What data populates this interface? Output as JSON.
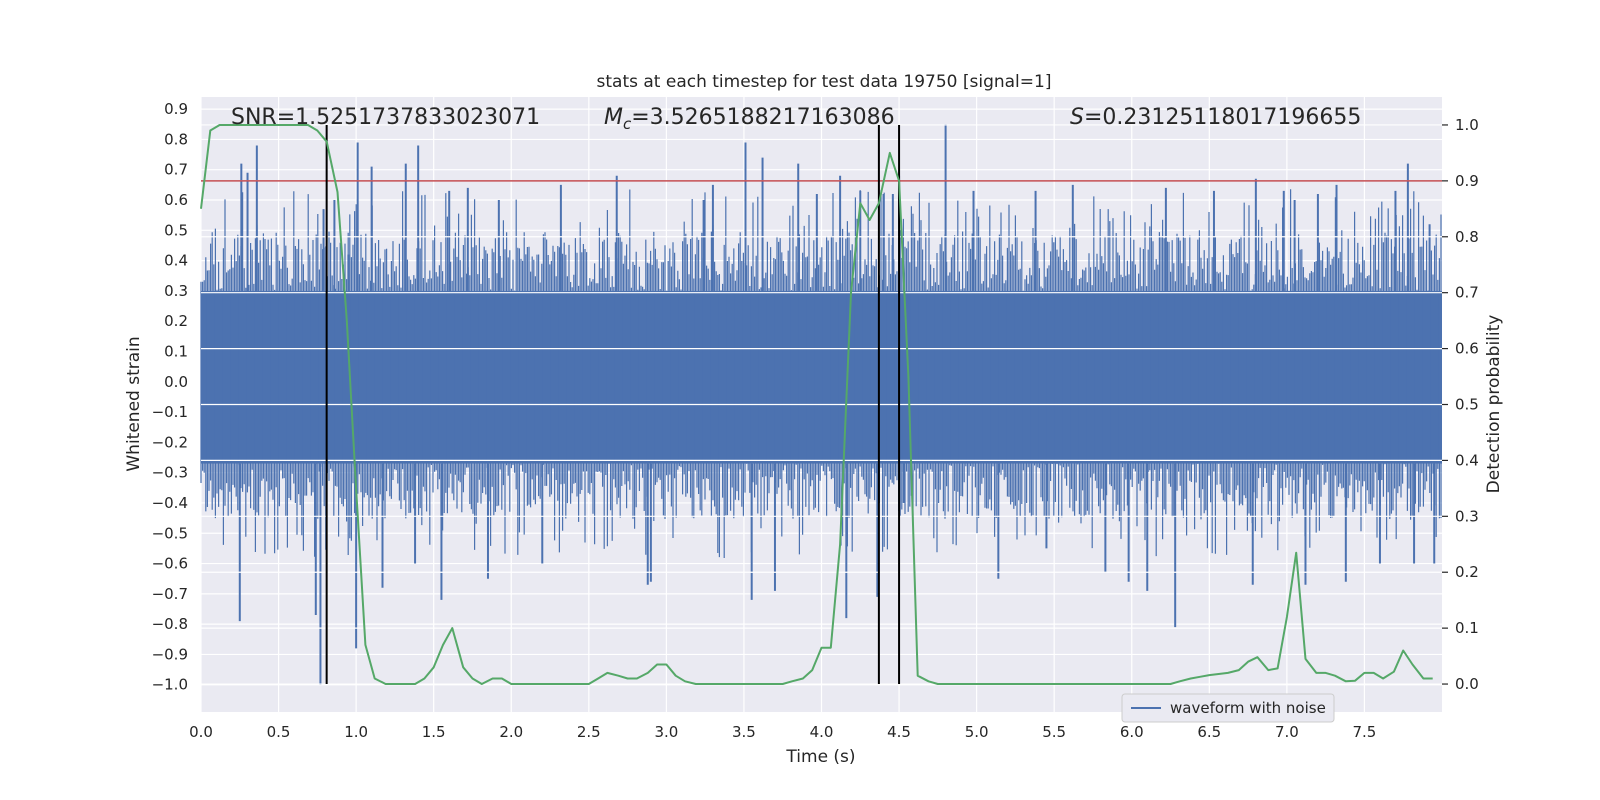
{
  "chart_data": {
    "type": "line",
    "title": "stats at each timestep for test data 19750 [signal=1]",
    "xlabel": "Time (s)",
    "ylabel": "Whitened strain",
    "y2label": "Detection probability",
    "xlim": [
      0.0,
      8.0
    ],
    "ylim": [
      -1.09,
      0.94
    ],
    "y2lim": [
      -0.05,
      1.05
    ],
    "xticks": [
      0.0,
      0.5,
      1.0,
      1.5,
      2.0,
      2.5,
      3.0,
      3.5,
      4.0,
      4.5,
      5.0,
      5.5,
      6.0,
      6.5,
      7.0,
      7.5
    ],
    "xtick_labels": [
      "0.0",
      "0.5",
      "1.0",
      "1.5",
      "2.0",
      "2.5",
      "3.0",
      "3.5",
      "4.0",
      "4.5",
      "5.0",
      "5.5",
      "6.0",
      "6.5",
      "7.0",
      "7.5"
    ],
    "yticks": [
      0.9,
      0.8,
      0.7,
      0.6,
      0.5,
      0.4,
      0.3,
      0.2,
      0.1,
      0.0,
      -0.1,
      -0.2,
      -0.3,
      -0.4,
      -0.5,
      -0.6,
      -0.7,
      -0.8,
      -0.9,
      -1.0
    ],
    "ytick_labels": [
      "0.9",
      "0.8",
      "0.7",
      "0.6",
      "0.5",
      "0.4",
      "0.3",
      "0.2",
      "0.1",
      "0.0",
      "−0.1",
      "−0.2",
      "−0.3",
      "−0.4",
      "−0.5",
      "−0.6",
      "−0.7",
      "−0.8",
      "−0.9",
      "−1.0"
    ],
    "y2ticks": [
      1.0,
      0.9,
      0.8,
      0.7,
      0.6,
      0.5,
      0.4,
      0.3,
      0.2,
      0.1,
      0.0
    ],
    "y2tick_labels": [
      "1.0",
      "0.9",
      "0.8",
      "0.7",
      "0.6",
      "0.5",
      "0.4",
      "0.3",
      "0.2",
      "0.1",
      "0.0"
    ],
    "annotations": {
      "snr": "SNR=1.5251737833023071",
      "mc_symbol": "M",
      "mc_sub": "c",
      "mc_value": "=3.5265188217163086",
      "s_symbol": "S",
      "s_value": "=0.23125118017196655"
    },
    "threshold": {
      "value": 0.9,
      "axis": "right",
      "color": "#c44e52"
    },
    "vertical_lines": [
      0.81,
      4.37,
      4.5
    ],
    "waveform": {
      "name": "waveform with noise",
      "color": "#4c72b0",
      "sample_rate_hz": 2048,
      "core_band": [
        -0.27,
        0.3
      ],
      "spikes": [
        {
          "t": 0.25,
          "y": -0.79
        },
        {
          "t": 0.26,
          "y": 0.72
        },
        {
          "t": 0.3,
          "y": 0.69
        },
        {
          "t": 0.36,
          "y": 0.78
        },
        {
          "t": 0.74,
          "y": -0.77
        },
        {
          "t": 0.77,
          "y": -1.0
        },
        {
          "t": 0.79,
          "y": 0.57
        },
        {
          "t": 0.86,
          "y": 0.6
        },
        {
          "t": 0.95,
          "y": 0.42
        },
        {
          "t": 1.0,
          "y": -0.88
        },
        {
          "t": 1.01,
          "y": 0.79
        },
        {
          "t": 1.1,
          "y": 0.71
        },
        {
          "t": 1.17,
          "y": -0.68
        },
        {
          "t": 1.32,
          "y": 0.72
        },
        {
          "t": 1.38,
          "y": -0.6
        },
        {
          "t": 1.4,
          "y": 0.78
        },
        {
          "t": 1.55,
          "y": -0.72
        },
        {
          "t": 1.6,
          "y": 0.63
        },
        {
          "t": 1.72,
          "y": 0.64
        },
        {
          "t": 1.85,
          "y": -0.65
        },
        {
          "t": 1.92,
          "y": 0.6
        },
        {
          "t": 2.2,
          "y": -0.6
        },
        {
          "t": 2.32,
          "y": 0.65
        },
        {
          "t": 2.68,
          "y": 0.68
        },
        {
          "t": 2.88,
          "y": -0.67
        },
        {
          "t": 2.9,
          "y": -0.66
        },
        {
          "t": 3.24,
          "y": 0.6
        },
        {
          "t": 3.3,
          "y": 0.65
        },
        {
          "t": 3.51,
          "y": 0.79
        },
        {
          "t": 3.55,
          "y": -0.72
        },
        {
          "t": 3.62,
          "y": 0.74
        },
        {
          "t": 3.7,
          "y": -0.69
        },
        {
          "t": 3.85,
          "y": 0.72
        },
        {
          "t": 3.97,
          "y": 0.62
        },
        {
          "t": 4.12,
          "y": 0.68
        },
        {
          "t": 4.16,
          "y": -0.78
        },
        {
          "t": 4.25,
          "y": 0.63
        },
        {
          "t": 4.36,
          "y": -0.71
        },
        {
          "t": 4.4,
          "y": 0.62
        },
        {
          "t": 4.46,
          "y": 0.62
        },
        {
          "t": 4.5,
          "y": 0.68
        },
        {
          "t": 4.53,
          "y": -0.4
        },
        {
          "t": 4.8,
          "y": 0.85
        },
        {
          "t": 4.98,
          "y": 0.63
        },
        {
          "t": 5.14,
          "y": -0.65
        },
        {
          "t": 5.38,
          "y": 0.63
        },
        {
          "t": 5.45,
          "y": -0.55
        },
        {
          "t": 5.62,
          "y": 0.65
        },
        {
          "t": 5.83,
          "y": -0.63
        },
        {
          "t": 5.98,
          "y": -0.66
        },
        {
          "t": 6.1,
          "y": -0.69
        },
        {
          "t": 6.22,
          "y": 0.64
        },
        {
          "t": 6.28,
          "y": -0.81
        },
        {
          "t": 6.53,
          "y": 0.63
        },
        {
          "t": 6.78,
          "y": -0.67
        },
        {
          "t": 6.8,
          "y": 0.67
        },
        {
          "t": 6.98,
          "y": 0.63
        },
        {
          "t": 7.05,
          "y": 0.6
        },
        {
          "t": 7.12,
          "y": -0.67
        },
        {
          "t": 7.2,
          "y": 0.62
        },
        {
          "t": 7.32,
          "y": 0.65
        },
        {
          "t": 7.38,
          "y": -0.66
        },
        {
          "t": 7.6,
          "y": -0.6
        },
        {
          "t": 7.7,
          "y": 0.63
        },
        {
          "t": 7.78,
          "y": 0.72
        },
        {
          "t": 7.82,
          "y": -0.6
        },
        {
          "t": 7.92,
          "y": 0.52
        },
        {
          "t": 7.95,
          "y": -0.6
        }
      ]
    },
    "probability": {
      "name": "detection probability",
      "color": "#55a868",
      "x": [
        0.0,
        0.06,
        0.12,
        0.25,
        0.5,
        0.69,
        0.75,
        0.81,
        0.88,
        0.94,
        1.0,
        1.06,
        1.12,
        1.19,
        1.25,
        1.31,
        1.38,
        1.44,
        1.5,
        1.56,
        1.62,
        1.69,
        1.75,
        1.81,
        1.88,
        1.94,
        2.0,
        2.06,
        2.25,
        2.5,
        2.56,
        2.62,
        2.69,
        2.75,
        2.81,
        2.88,
        2.94,
        3.0,
        3.06,
        3.12,
        3.19,
        3.25,
        3.5,
        3.75,
        3.81,
        3.88,
        3.94,
        4.0,
        4.06,
        4.12,
        4.19,
        4.25,
        4.31,
        4.37,
        4.44,
        4.5,
        4.56,
        4.62,
        4.69,
        4.75,
        4.88,
        5.5,
        6.0,
        6.25,
        6.31,
        6.38,
        6.44,
        6.5,
        6.56,
        6.62,
        6.69,
        6.75,
        6.81,
        6.88,
        6.94,
        7.0,
        7.06,
        7.12,
        7.19,
        7.25,
        7.31,
        7.38,
        7.44,
        7.5,
        7.56,
        7.62,
        7.69,
        7.75,
        7.81,
        7.88,
        7.94
      ],
      "y": [
        0.85,
        0.99,
        1.0,
        1.0,
        1.0,
        1.0,
        0.99,
        0.97,
        0.88,
        0.65,
        0.35,
        0.07,
        0.01,
        0.0,
        0.0,
        0.0,
        0.0,
        0.01,
        0.03,
        0.07,
        0.1,
        0.03,
        0.01,
        0.0,
        0.01,
        0.01,
        0.0,
        0.0,
        0.0,
        0.0,
        0.01,
        0.02,
        0.015,
        0.01,
        0.01,
        0.02,
        0.035,
        0.035,
        0.015,
        0.005,
        0.0,
        0.0,
        0.0,
        0.0,
        0.005,
        0.01,
        0.025,
        0.065,
        0.065,
        0.25,
        0.7,
        0.86,
        0.83,
        0.86,
        0.95,
        0.9,
        0.55,
        0.015,
        0.005,
        0.0,
        0.0,
        0.0,
        0.0,
        0.0,
        0.005,
        0.01,
        0.013,
        0.016,
        0.018,
        0.02,
        0.025,
        0.04,
        0.048,
        0.025,
        0.028,
        0.12,
        0.235,
        0.045,
        0.02,
        0.02,
        0.015,
        0.005,
        0.006,
        0.02,
        0.02,
        0.01,
        0.022,
        0.06,
        0.035,
        0.01,
        0.01
      ]
    },
    "legend": {
      "position": "lower-right",
      "entries": [
        "waveform with noise"
      ]
    },
    "grid": true
  }
}
